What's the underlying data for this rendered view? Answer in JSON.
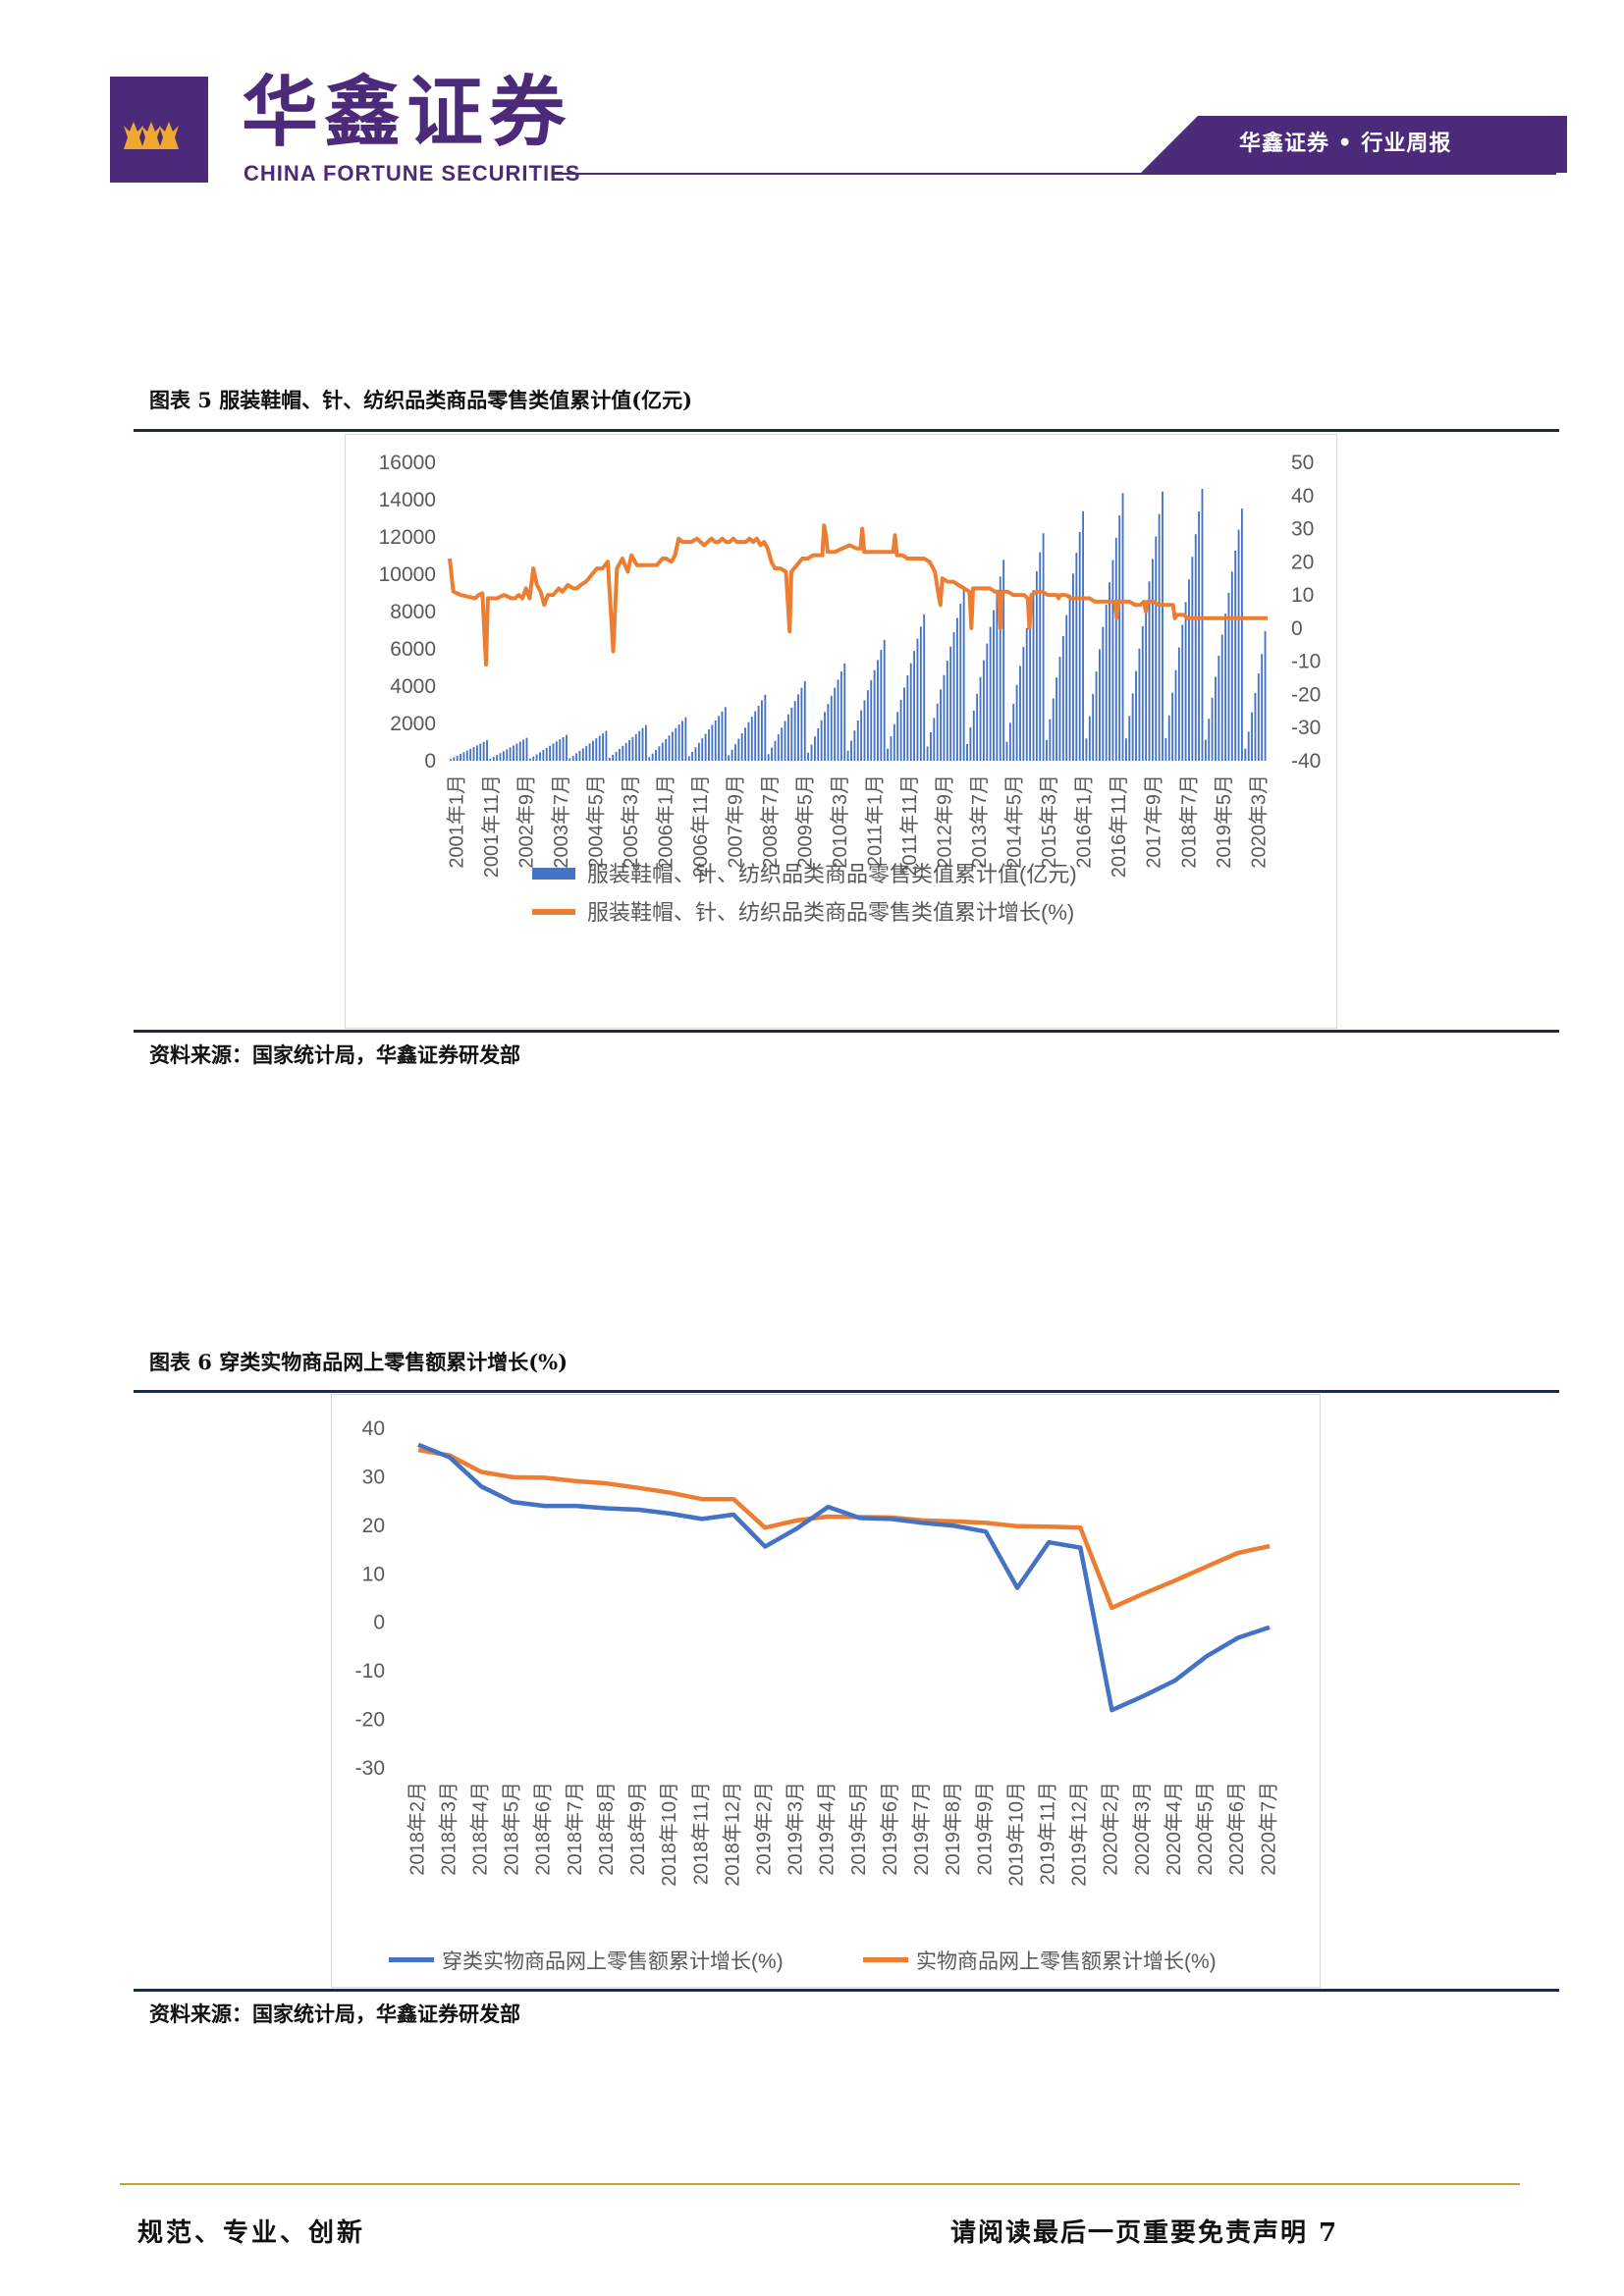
{
  "header": {
    "brand_cn": "华鑫证券",
    "brand_en": "CHINA FORTUNE SECURITIES",
    "report_tag": "华鑫证券 • 行业周报",
    "logo_icon": "firm-logo-icon",
    "brand_color": "#4b2a7a"
  },
  "figure5": {
    "title": "图表 5 服装鞋帽、针、纺织品类商品零售类值累计值(亿元)",
    "source": "资料来源：国家统计局，华鑫证券研发部",
    "chart_data": {
      "type": "bar+line",
      "categories": [
        "2001年1月",
        "2001年11月",
        "2002年9月",
        "2003年7月",
        "2004年5月",
        "2005年3月",
        "2006年1月",
        "2006年11月",
        "2007年9月",
        "2008年7月",
        "2009年5月",
        "2010年3月",
        "2011年1月",
        "2011年11月",
        "2012年9月",
        "2013年7月",
        "2014年5月",
        "2015年3月",
        "2016年1月",
        "2016年11月",
        "2017年9月",
        "2018年7月",
        "2019年5月",
        "2020年3月"
      ],
      "y_left": {
        "ylim": [
          0,
          16000
        ],
        "ticks": [
          0,
          2000,
          4000,
          6000,
          8000,
          10000,
          12000,
          14000,
          16000
        ]
      },
      "y_right": {
        "ylim": [
          -40,
          50
        ],
        "ticks": [
          -40,
          -30,
          -20,
          -10,
          0,
          10,
          20,
          30,
          40,
          50
        ]
      },
      "series": [
        {
          "name": "服装鞋帽、针、纺织品类商品零售类值累计值(亿元)",
          "type": "bar",
          "axis": "left",
          "color": "#4472c4",
          "annual_dec_values": [
            1100,
            1230,
            1380,
            1600,
            1910,
            2330,
            2880,
            3540,
            4270,
            5220,
            6480,
            7850,
            9190,
            10770,
            12200,
            13380,
            14350,
            14430,
            14580,
            13520,
            6950
          ],
          "start_year": 2001,
          "end_month_last": 7
        },
        {
          "name": "服装鞋帽、针、纺织品类商品零售类值累计增长(%)",
          "type": "line",
          "axis": "right",
          "color": "#ed7d31",
          "anchor_points": [
            [
              0,
              21
            ],
            [
              2,
              11
            ],
            [
              6,
              10
            ],
            [
              10,
              9.5
            ],
            [
              14,
              9
            ],
            [
              16,
              10
            ],
            [
              18,
              10.5
            ],
            [
              20,
              -11
            ],
            [
              21,
              9
            ],
            [
              26,
              9
            ],
            [
              30,
              10
            ],
            [
              34,
              9
            ],
            [
              36,
              9
            ],
            [
              38,
              10
            ],
            [
              40,
              9
            ],
            [
              42,
              12
            ],
            [
              44,
              9
            ],
            [
              46,
              18
            ],
            [
              48,
              13
            ],
            [
              50,
              11
            ],
            [
              52,
              7
            ],
            [
              54,
              10
            ],
            [
              57,
              10
            ],
            [
              60,
              12
            ],
            [
              62,
              11
            ],
            [
              65,
              13
            ],
            [
              68,
              12
            ],
            [
              70,
              12
            ],
            [
              72,
              13
            ],
            [
              75,
              14
            ],
            [
              78,
              16
            ],
            [
              81,
              18
            ],
            [
              84,
              18
            ],
            [
              87,
              20
            ],
            [
              90,
              -7
            ],
            [
              92,
              18
            ],
            [
              95,
              21
            ],
            [
              98,
              17
            ],
            [
              100,
              22
            ],
            [
              103,
              19
            ],
            [
              106,
              19
            ],
            [
              110,
              19
            ],
            [
              114,
              19
            ],
            [
              117,
              21
            ],
            [
              119,
              21
            ],
            [
              122,
              20
            ],
            [
              124,
              22
            ],
            [
              126,
              27
            ],
            [
              128,
              26
            ],
            [
              130,
              26
            ],
            [
              133,
              26
            ],
            [
              136,
              27
            ],
            [
              138,
              26
            ],
            [
              140,
              25
            ],
            [
              142,
              26
            ],
            [
              144,
              27
            ],
            [
              146,
              26
            ],
            [
              148,
              26
            ],
            [
              150,
              27
            ],
            [
              152,
              26
            ],
            [
              154,
              26
            ],
            [
              156,
              27
            ],
            [
              158,
              26
            ],
            [
              160,
              26
            ],
            [
              163,
              26
            ],
            [
              165,
              27
            ],
            [
              167,
              26
            ],
            [
              169,
              27
            ],
            [
              171,
              25
            ],
            [
              173,
              26
            ],
            [
              175,
              24
            ],
            [
              177,
              20
            ],
            [
              179,
              18
            ],
            [
              182,
              18
            ],
            [
              185,
              17
            ],
            [
              187,
              -1
            ],
            [
              188,
              17
            ],
            [
              191,
              19
            ],
            [
              194,
              21
            ],
            [
              197,
              21
            ],
            [
              200,
              22
            ],
            [
              203,
              22
            ],
            [
              205,
              22
            ],
            [
              206,
              31
            ],
            [
              207,
              28
            ],
            [
              208,
              23
            ],
            [
              212,
              23
            ],
            [
              216,
              24
            ],
            [
              220,
              25
            ],
            [
              224,
              24
            ],
            [
              226,
              24
            ],
            [
              227,
              30
            ],
            [
              228,
              23
            ],
            [
              232,
              23
            ],
            [
              236,
              23
            ],
            [
              240,
              23
            ],
            [
              244,
              23
            ],
            [
              245,
              28
            ],
            [
              246,
              22
            ],
            [
              249,
              22
            ],
            [
              252,
              21
            ],
            [
              255,
              21
            ],
            [
              258,
              21
            ],
            [
              261,
              21
            ],
            [
              264,
              20
            ],
            [
              267,
              17
            ],
            [
              269,
              10
            ],
            [
              270,
              7
            ],
            [
              271,
              15
            ],
            [
              274,
              14
            ],
            [
              277,
              14
            ],
            [
              280,
              13
            ],
            [
              283,
              12
            ],
            [
              286,
              11
            ],
            [
              287,
              0
            ],
            [
              288,
              12
            ],
            [
              291,
              12
            ],
            [
              294,
              12
            ],
            [
              297,
              12
            ],
            [
              300,
              11
            ],
            [
              302,
              11
            ],
            [
              303,
              0
            ],
            [
              304,
              11
            ],
            [
              307,
              11
            ],
            [
              310,
              10
            ],
            [
              313,
              10
            ],
            [
              316,
              10
            ],
            [
              318,
              9
            ],
            [
              319,
              0
            ],
            [
              320,
              10
            ],
            [
              323,
              11
            ],
            [
              326,
              11
            ],
            [
              329,
              10
            ],
            [
              332,
              10
            ],
            [
              334,
              10
            ],
            [
              335,
              9
            ],
            [
              336,
              10
            ],
            [
              339,
              10
            ],
            [
              342,
              9
            ],
            [
              345,
              9
            ],
            [
              348,
              9
            ],
            [
              350,
              9
            ],
            [
              351,
              9
            ],
            [
              352,
              9
            ],
            [
              355,
              8
            ],
            [
              358,
              8
            ],
            [
              361,
              8
            ],
            [
              364,
              8
            ],
            [
              366,
              8
            ],
            [
              367,
              3
            ],
            [
              368,
              8
            ],
            [
              371,
              8
            ],
            [
              374,
              8
            ],
            [
              377,
              7
            ],
            [
              380,
              7
            ],
            [
              382,
              8
            ],
            [
              383,
              5
            ],
            [
              384,
              8
            ],
            [
              387,
              8
            ],
            [
              390,
              7
            ],
            [
              393,
              7
            ],
            [
              396,
              7
            ],
            [
              398,
              7
            ],
            [
              399,
              3
            ],
            [
              400,
              4
            ],
            [
              402,
              4
            ],
            [
              404,
              4
            ],
            [
              406,
              3
            ],
            [
              408,
              3
            ],
            [
              410,
              3
            ],
            [
              412,
              3
            ],
            [
              414,
              3
            ],
            [
              416,
              3
            ],
            [
              418,
              3
            ],
            [
              420,
              3
            ],
            [
              422,
              3
            ],
            [
              424,
              3
            ],
            [
              426,
              3
            ],
            [
              428,
              3
            ],
            [
              430,
              3
            ],
            [
              432,
              3
            ],
            [
              434,
              3
            ],
            [
              436,
              3
            ],
            [
              438,
              3
            ],
            [
              440,
              3
            ],
            [
              442,
              3
            ],
            [
              444,
              3
            ],
            [
              446,
              3
            ],
            [
              448,
              3
            ],
            [
              450,
              3
            ]
          ]
        }
      ]
    }
  },
  "figure6": {
    "title": "图表 6 穿类实物商品网上零售额累计增长(%)",
    "source": "资料来源：国家统计局，华鑫证券研发部",
    "chart_data": {
      "type": "line",
      "categories": [
        "2018年2月",
        "2018年3月",
        "2018年4月",
        "2018年5月",
        "2018年6月",
        "2018年7月",
        "2018年8月",
        "2018年9月",
        "2018年10月",
        "2018年11月",
        "2018年12月",
        "2019年2月",
        "2019年3月",
        "2019年4月",
        "2019年5月",
        "2019年6月",
        "2019年7月",
        "2019年8月",
        "2019年9月",
        "2019年10月",
        "2019年11月",
        "2019年12月",
        "2020年2月",
        "2020年3月",
        "2020年4月",
        "2020年5月",
        "2020年6月",
        "2020年7月"
      ],
      "ylim": [
        -30,
        40
      ],
      "yticks": [
        -30,
        -20,
        -10,
        0,
        10,
        20,
        30,
        40
      ],
      "series": [
        {
          "name": "穿类实物商品网上零售额累计增长(%)",
          "color": "#4472c4",
          "values": [
            36.6,
            34.0,
            28.0,
            24.8,
            24.0,
            24.0,
            23.5,
            23.2,
            22.4,
            21.3,
            22.2,
            15.6,
            19.3,
            23.8,
            21.5,
            21.3,
            20.5,
            19.9,
            18.7,
            7.1,
            16.5,
            15.4,
            -18.1,
            -15.2,
            -12.0,
            -7.0,
            -3.2,
            -1.0
          ]
        },
        {
          "name": "实物商品网上零售额累计增长(%)",
          "color": "#ed7d31",
          "values": [
            35.5,
            34.4,
            31.0,
            29.9,
            29.8,
            29.1,
            28.6,
            27.7,
            26.7,
            25.4,
            25.4,
            19.5,
            21.0,
            21.8,
            21.7,
            21.6,
            21.0,
            20.8,
            20.5,
            19.8,
            19.7,
            19.5,
            3.0,
            5.9,
            8.6,
            11.5,
            14.3,
            15.7
          ]
        }
      ]
    }
  },
  "footer": {
    "left": "规范、专业、创新",
    "right": "请阅读最后一页重要免责声明 7",
    "accent_color": "#d49a33"
  }
}
